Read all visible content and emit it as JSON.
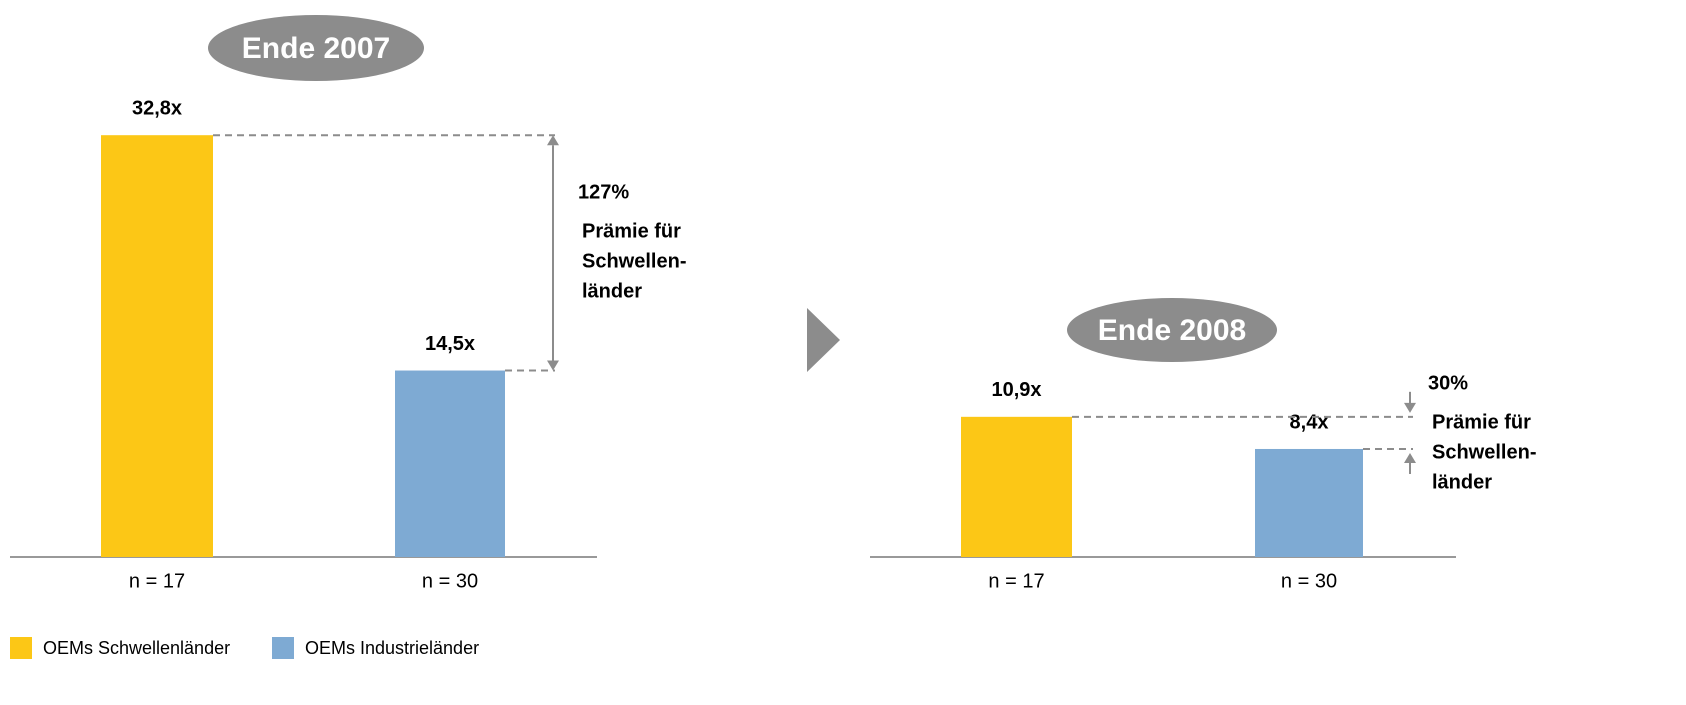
{
  "chart_data": [
    {
      "type": "bar",
      "title": "Ende 2007",
      "categories": [
        "n = 17",
        "n = 30"
      ],
      "values": [
        32.8,
        14.5
      ],
      "value_labels": [
        "32,8x",
        "14,5x"
      ],
      "colors": [
        "#fcc716",
        "#7eaad3"
      ],
      "annotation": {
        "value": "127%",
        "lines": [
          "Prämie für",
          "Schwellen-",
          "länder"
        ]
      }
    },
    {
      "type": "bar",
      "title": "Ende 2008",
      "categories": [
        "n = 17",
        "n = 30"
      ],
      "values": [
        10.9,
        8.4
      ],
      "value_labels": [
        "10,9x",
        "8,4x"
      ],
      "colors": [
        "#fcc716",
        "#7eaad3"
      ],
      "annotation": {
        "value": "30%",
        "lines": [
          "Prämie für",
          "Schwellen-",
          "länder"
        ]
      }
    }
  ],
  "legend": [
    {
      "name": "OEMs Schwellenländer",
      "color": "#fcc716"
    },
    {
      "name": "OEMs Industrieländer",
      "color": "#7eaad3"
    }
  ]
}
